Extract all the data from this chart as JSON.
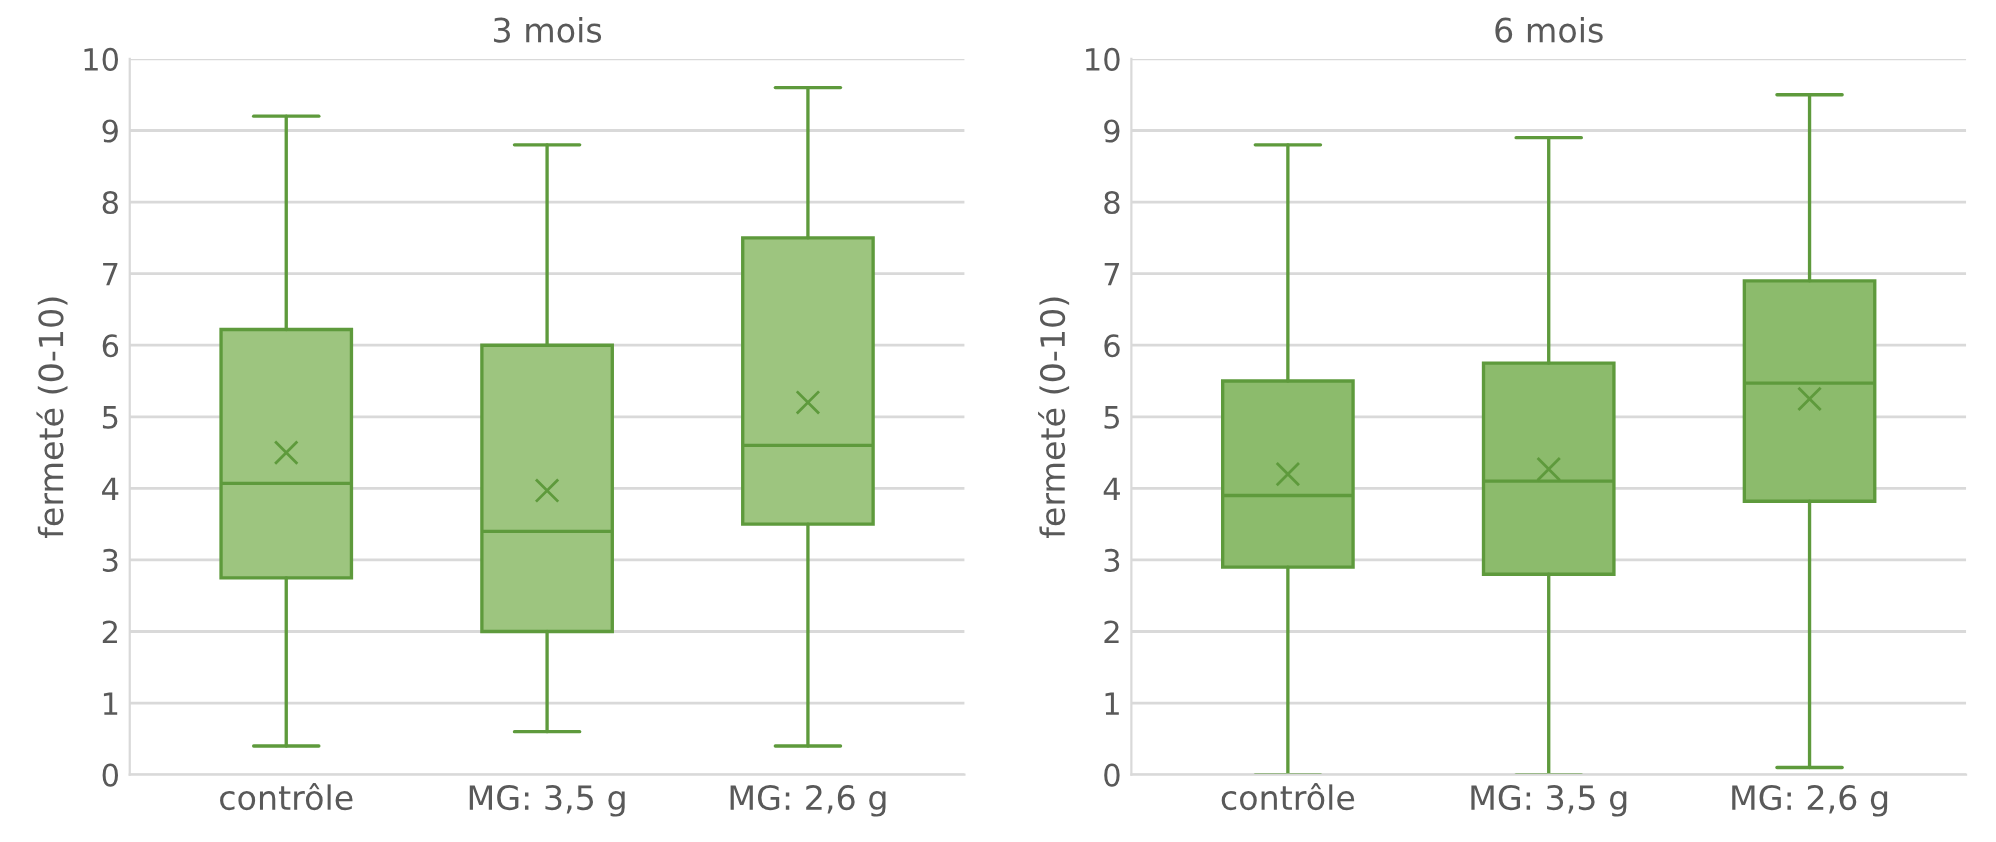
{
  "chart_data": [
    {
      "type": "box",
      "title": "3 mois",
      "ylabel": "fermeté (0-10)",
      "categories": [
        "contrôle",
        "MG: 3,5 g",
        "MG: 2,6 g"
      ],
      "ylim": [
        0,
        10
      ],
      "yticks": [
        0,
        1,
        2,
        3,
        4,
        5,
        6,
        7,
        8,
        9,
        10
      ],
      "grid": "y",
      "marker": "cross",
      "series": [
        {
          "color": "#9dc57f",
          "boxes": [
            {
              "low": 0.4,
              "q1": 2.75,
              "median": 4.07,
              "q3": 6.22,
              "high": 9.2,
              "mean": 4.5
            },
            {
              "low": 0.6,
              "q1": 2.0,
              "median": 3.4,
              "q3": 6.0,
              "high": 8.8,
              "mean": 3.97
            },
            {
              "low": 0.4,
              "q1": 3.5,
              "median": 4.6,
              "q3": 7.5,
              "high": 9.6,
              "mean": 5.2
            }
          ]
        }
      ]
    },
    {
      "type": "box",
      "title": "6 mois",
      "ylabel": "fermeté (0-10)",
      "categories": [
        "contrôle",
        "MG: 3,5 g",
        "MG: 2,6 g"
      ],
      "ylim": [
        0,
        10
      ],
      "yticks": [
        0,
        1,
        2,
        3,
        4,
        5,
        6,
        7,
        8,
        9,
        10
      ],
      "grid": "y",
      "marker": "cross",
      "series": [
        {
          "color": "#8cbb6c",
          "boxes": [
            {
              "low": 0,
              "q1": 2.9,
              "median": 3.9,
              "q3": 5.5,
              "high": 8.8,
              "mean": 4.2
            },
            {
              "low": 0,
              "q1": 2.8,
              "median": 4.1,
              "q3": 5.75,
              "high": 8.9,
              "mean": 4.27
            },
            {
              "low": 0.1,
              "q1": 3.82,
              "median": 5.47,
              "q3": 6.9,
              "high": 9.5,
              "mean": 5.25
            }
          ]
        }
      ]
    }
  ]
}
